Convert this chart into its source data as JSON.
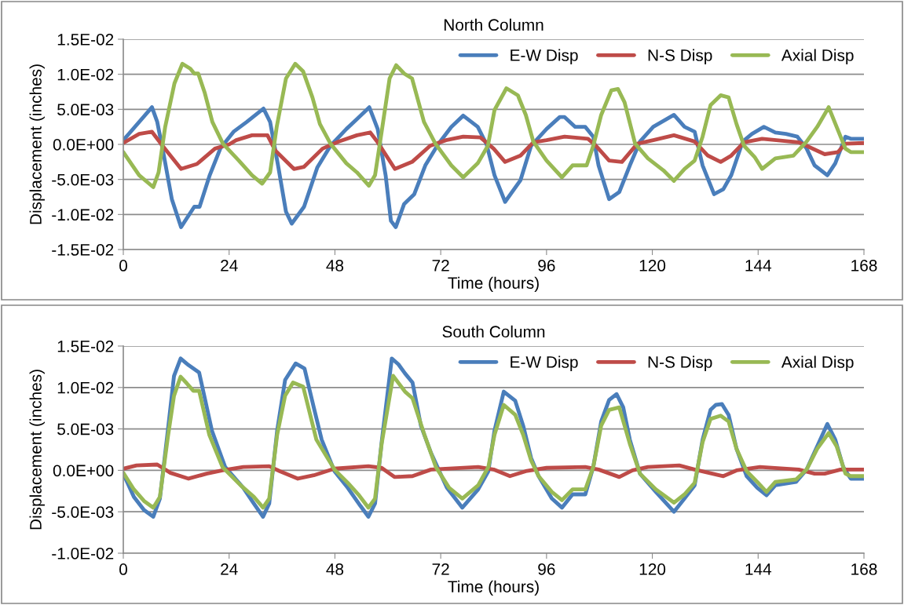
{
  "chart_data": [
    {
      "type": "line",
      "title": "North Column",
      "xlabel": "Time (hours)",
      "ylabel": "Displacement (inches)",
      "xlim": [
        0,
        168
      ],
      "xticks": [
        0,
        24,
        48,
        72,
        96,
        120,
        144,
        168
      ],
      "ylim": [
        -0.015,
        0.015
      ],
      "yticks": [
        {
          "value": -0.015,
          "label": "-1.5E-02"
        },
        {
          "value": -0.01,
          "label": "-1.0E-02"
        },
        {
          "value": -0.005,
          "label": "-5.0E-03"
        },
        {
          "value": 0,
          "label": "0.0E+00"
        },
        {
          "value": 0.005,
          "label": "5.0E-03"
        },
        {
          "value": 0.01,
          "label": "1.0E-02"
        },
        {
          "value": 0.015,
          "label": "1.5E-02"
        }
      ],
      "grid": "y",
      "legend": "top right",
      "marker": "none",
      "line_style": "solid",
      "series": [
        {
          "name": "E-W Disp",
          "color": "#4a7ebb",
          "x": [
            0,
            6.5,
            7.7,
            9.2,
            11,
            13.1,
            16.1,
            17.3,
            19.6,
            22,
            25,
            28,
            31.8,
            33.3,
            35.1,
            36.9,
            38.2,
            41,
            44,
            47,
            50.6,
            53,
            55.8,
            57.7,
            59.5,
            60.7,
            61.8,
            63.7,
            66,
            68.5,
            71.4,
            74.4,
            77.1,
            80.4,
            82.4,
            84.2,
            86.6,
            90.1,
            92.5,
            96,
            99,
            100.1,
            102.5,
            104.8,
            106.6,
            107.8,
            110.2,
            112.5,
            114.9,
            117.2,
            120.2,
            124.9,
            127.3,
            129.6,
            131.4,
            134,
            136.1,
            137.9,
            140.5,
            142.6,
            145.3,
            147.9,
            150.3,
            152.9,
            155,
            156.8,
            159.7,
            161.5,
            163.8,
            165,
            168
          ],
          "values": [
            0.0006,
            0.0053,
            0.0032,
            -0.0016,
            -0.0078,
            -0.0118,
            -0.0089,
            -0.0089,
            -0.0044,
            -0.0006,
            0.0018,
            0.0032,
            0.0051,
            0.0032,
            -0.003,
            -0.0096,
            -0.0113,
            -0.0089,
            -0.0033,
            -0.0002,
            0.0022,
            0.0036,
            0.0053,
            0.0022,
            -0.0044,
            -0.0109,
            -0.0118,
            -0.0085,
            -0.0071,
            -0.003,
            0,
            0.0025,
            0.0041,
            0.0025,
            0,
            -0.0044,
            -0.0082,
            -0.0051,
            -0.0002,
            0.0022,
            0.0039,
            0.0039,
            0.0025,
            0.0025,
            0.0011,
            -0.003,
            -0.0078,
            -0.0068,
            -0.003,
            0.0004,
            0.0025,
            0.0042,
            0.0025,
            0.0018,
            -0.003,
            -0.0071,
            -0.0064,
            -0.0044,
            0.0004,
            0.0015,
            0.0025,
            0.0017,
            0.0015,
            0.0011,
            -0.0006,
            -0.003,
            -0.0044,
            -0.0027,
            0.0011,
            0.0008,
            0.0008
          ]
        },
        {
          "name": "N-S Disp",
          "color": "#be4b48",
          "x": [
            0,
            3.6,
            6.5,
            8.9,
            13.1,
            16.7,
            20.8,
            24,
            25.6,
            29.2,
            32.7,
            34.5,
            38.7,
            41,
            45.2,
            48.8,
            53,
            56,
            57.7,
            61.6,
            65.5,
            69.6,
            73.2,
            77.1,
            81,
            84,
            86.6,
            90.1,
            93,
            96,
            100.1,
            105.4,
            107.2,
            110.2,
            113.1,
            116.6,
            120.2,
            124.9,
            129.6,
            132.6,
            135.5,
            137.9,
            140.8,
            144.9,
            153.2,
            159.1,
            162.1,
            163.8,
            168
          ],
          "values": [
            0.0002,
            0.0015,
            0.0018,
            -0.0002,
            -0.0035,
            -0.0028,
            -0.0006,
            0,
            0.0006,
            0.0013,
            0.0013,
            -0.0009,
            -0.0035,
            -0.0032,
            -0.0006,
            0.0004,
            0.0013,
            0.0017,
            0.0003,
            -0.0035,
            -0.0025,
            -0.0002,
            0.0006,
            0.0011,
            0.001,
            -0.0006,
            -0.0025,
            -0.0016,
            0.0003,
            0.0006,
            0.0011,
            0.0008,
            -0.0002,
            -0.0023,
            -0.0025,
            0.0001,
            0.0006,
            0.0013,
            0.0004,
            -0.0016,
            -0.0025,
            -0.0016,
            0.0003,
            0.0008,
            0.0003,
            -0.0014,
            -0.0011,
            0.0001,
            0.0002
          ]
        },
        {
          "name": "Axial Disp",
          "color": "#98b954",
          "x": [
            0,
            3.6,
            6.8,
            8,
            9.5,
            11.6,
            13.4,
            15.2,
            16.1,
            17,
            18.5,
            20.2,
            22.6,
            26.2,
            29.2,
            31.5,
            33.3,
            34.8,
            36.9,
            39,
            40.8,
            42.9,
            44.6,
            47,
            50.6,
            53,
            55.7,
            57.1,
            58.6,
            60.4,
            61.9,
            63.7,
            65.5,
            68.2,
            70.8,
            74.4,
            77.1,
            80.4,
            82.7,
            84.2,
            86.9,
            89.5,
            91.3,
            93,
            96,
            99.5,
            101.9,
            105.1,
            106.6,
            108.4,
            110.7,
            112.2,
            113.7,
            116.1,
            119,
            122.5,
            124.9,
            127.3,
            129.6,
            131.4,
            133.2,
            135.5,
            137.3,
            139.1,
            140.8,
            143.2,
            144.9,
            147.9,
            152,
            155,
            157.4,
            160,
            161.8,
            163.8,
            165,
            168
          ],
          "values": [
            -0.0011,
            -0.0044,
            -0.0061,
            -0.004,
            0.0025,
            0.0087,
            0.0115,
            0.0108,
            0.0101,
            0.0101,
            0.0073,
            0.0032,
            0.0001,
            -0.0023,
            -0.0044,
            -0.0056,
            -0.004,
            0.0025,
            0.0094,
            0.0115,
            0.0104,
            0.0067,
            0.0029,
            0.0001,
            -0.0027,
            -0.004,
            -0.0059,
            -0.0044,
            0.0018,
            0.0094,
            0.0113,
            0.0101,
            0.0094,
            0.0032,
            0.0001,
            -0.003,
            -0.0047,
            -0.0027,
            -0.0002,
            0.0049,
            0.008,
            0.007,
            0.0042,
            0.0004,
            -0.0023,
            -0.0047,
            -0.003,
            -0.003,
            -0.0002,
            0.0042,
            0.0077,
            0.0079,
            0.006,
            0.0001,
            -0.002,
            -0.0037,
            -0.0052,
            -0.0035,
            -0.0023,
            0.0011,
            0.0056,
            0.007,
            0.0067,
            0.0029,
            -0.0002,
            -0.0018,
            -0.0035,
            -0.002,
            -0.0016,
            0.0004,
            0.0025,
            0.0053,
            0.0025,
            -0.0006,
            -0.0011,
            -0.0011
          ]
        }
      ]
    },
    {
      "type": "line",
      "title": "South Column",
      "xlabel": "Time (hours)",
      "ylabel": "Displacement (inches)",
      "xlim": [
        0,
        168
      ],
      "xticks": [
        0,
        24,
        48,
        72,
        96,
        120,
        144,
        168
      ],
      "ylim": [
        -0.01,
        0.015
      ],
      "yticks": [
        {
          "value": -0.01,
          "label": "-1.0E-02"
        },
        {
          "value": -0.005,
          "label": "-5.0E-03"
        },
        {
          "value": 0,
          "label": "0.0E+00"
        },
        {
          "value": 0.005,
          "label": "5.0E-03"
        },
        {
          "value": 0.01,
          "label": "1.0E-02"
        },
        {
          "value": 0.015,
          "label": "1.5E-02"
        }
      ],
      "grid": "y",
      "legend": "top right",
      "marker": "none",
      "line_style": "solid",
      "series": [
        {
          "name": "E-W Disp",
          "color": "#4a7ebb",
          "x": [
            0,
            2.4,
            4.7,
            6.8,
            8.3,
            10.1,
            11.5,
            13,
            14.8,
            17.2,
            20.1,
            23.1,
            27.2,
            29.6,
            31.7,
            33.1,
            34.9,
            36.7,
            39.1,
            41.1,
            43.2,
            45,
            47.9,
            50.9,
            53.8,
            55.6,
            57.1,
            58.6,
            60.9,
            62.4,
            63.9,
            65.6,
            67.5,
            69.8,
            73.4,
            76.9,
            80.5,
            82.8,
            84.2,
            86.3,
            88.9,
            90.7,
            92.5,
            94.2,
            97.2,
            99.5,
            101.9,
            104.8,
            106.6,
            108.4,
            110.2,
            111.9,
            113.4,
            114.9,
            117.2,
            120.8,
            124.9,
            127.3,
            129.6,
            131.4,
            133.2,
            134.4,
            135.8,
            137.3,
            139.1,
            141.4,
            143.8,
            145.9,
            147.9,
            152.6,
            155,
            157.4,
            159.7,
            161.5,
            163.3,
            165,
            168
          ],
          "values": [
            -0.0004,
            -0.0032,
            -0.0048,
            -0.0056,
            -0.0034,
            0.0048,
            0.0114,
            0.0135,
            0.0127,
            0.0118,
            0.0048,
            0.0004,
            -0.0021,
            -0.004,
            -0.0056,
            -0.004,
            0.0048,
            0.0109,
            0.0129,
            0.0123,
            0.0076,
            0.0037,
            -0.0001,
            -0.0021,
            -0.0043,
            -0.0056,
            -0.004,
            0.0034,
            0.0135,
            0.0128,
            0.0117,
            0.0106,
            0.0054,
            0.0021,
            -0.0021,
            -0.0045,
            -0.0023,
            -0.0001,
            0.0048,
            0.0095,
            0.0084,
            0.0054,
            0.0015,
            -0.0007,
            -0.0034,
            -0.0045,
            -0.0029,
            -0.0029,
            0.0004,
            0.0059,
            0.0085,
            0.0092,
            0.0076,
            0.0037,
            -0.0004,
            -0.0026,
            -0.005,
            -0.0034,
            -0.0018,
            0.0037,
            0.0073,
            0.0079,
            0.008,
            0.0067,
            0.0026,
            -0.0007,
            -0.0021,
            -0.003,
            -0.0018,
            -0.0014,
            0.0001,
            0.0029,
            0.0056,
            0.0037,
            0.0004,
            -0.001,
            -0.001
          ]
        },
        {
          "name": "N-S Disp",
          "color": "#be4b48",
          "x": [
            0,
            3,
            7.7,
            10.7,
            14.8,
            18.9,
            22.5,
            27.2,
            33.1,
            35.5,
            39.6,
            43.2,
            47.9,
            55.6,
            58.6,
            61.5,
            65.6,
            69.8,
            80.5,
            84,
            87.7,
            91.3,
            96,
            104.8,
            107.8,
            112.5,
            115.5,
            119,
            126.1,
            129.6,
            136.1,
            139.1,
            144.4,
            153.2,
            156.8,
            159.1,
            162.7,
            168
          ],
          "values": [
            0.0002,
            0.0006,
            0.0007,
            -0.0003,
            -0.001,
            -0.0004,
            0,
            0.0004,
            0.0005,
            -0.0001,
            -0.001,
            -0.0006,
            0.0002,
            0.0005,
            0.0003,
            -0.0008,
            -0.0007,
            0.0001,
            0.0004,
            0.0001,
            -0.0007,
            -0.0001,
            0.0003,
            0.0004,
            0.0001,
            -0.0008,
            0,
            0.0004,
            0.0006,
            0.0001,
            -0.0007,
            0,
            0.0004,
            0.0001,
            -0.0004,
            -0.0004,
            0.0001,
            0.0001
          ]
        },
        {
          "name": "Axial Disp",
          "color": "#98b954",
          "x": [
            0,
            2.4,
            4.7,
            6.8,
            8.3,
            10.1,
            11.5,
            13,
            14.4,
            15.9,
            17.2,
            19.5,
            22.5,
            26.6,
            29.6,
            31.7,
            33.1,
            34.9,
            36.7,
            38.5,
            40.8,
            43.8,
            47.9,
            50.9,
            53.3,
            55.6,
            57.1,
            58.6,
            61.2,
            63.9,
            65.6,
            68.3,
            70.9,
            73.9,
            76.9,
            80.5,
            82.8,
            84.2,
            86.3,
            88.9,
            90.7,
            92.5,
            94.2,
            97.2,
            99.5,
            101.9,
            104.8,
            106.6,
            108.4,
            110.2,
            112.5,
            114.9,
            117.2,
            120.8,
            124.9,
            127.3,
            129.6,
            131.4,
            133.2,
            135.5,
            137.3,
            139.1,
            141.4,
            143.8,
            145.9,
            147.9,
            152.6,
            155,
            157.4,
            160,
            161.8,
            163.8,
            165,
            168
          ],
          "values": [
            -0.0003,
            -0.0023,
            -0.0037,
            -0.0045,
            -0.0032,
            0.004,
            0.009,
            0.0113,
            0.0105,
            0.0096,
            0.0096,
            0.0043,
            0.0004,
            -0.0018,
            -0.0032,
            -0.0045,
            -0.0034,
            0.0043,
            0.009,
            0.0106,
            0.0101,
            0.0037,
            0.0001,
            -0.0015,
            -0.0029,
            -0.0045,
            -0.0034,
            0.0032,
            0.0114,
            0.0095,
            0.0087,
            0.0043,
            0.0004,
            -0.0021,
            -0.0034,
            -0.0018,
            0.0004,
            0.0043,
            0.0079,
            0.0067,
            0.0043,
            0.0012,
            -0.0007,
            -0.0026,
            -0.0036,
            -0.0023,
            -0.0023,
            0.0004,
            0.0054,
            0.0073,
            0.0076,
            0.0032,
            -0.0004,
            -0.0023,
            -0.0039,
            -0.0029,
            -0.0015,
            0.0034,
            0.0062,
            0.0066,
            0.0059,
            0.0026,
            -0.0001,
            -0.0014,
            -0.0026,
            -0.0014,
            -0.0011,
            0.0001,
            0.0026,
            0.0045,
            0.0029,
            -0.0004,
            -0.0007,
            -0.0007
          ]
        }
      ]
    }
  ]
}
